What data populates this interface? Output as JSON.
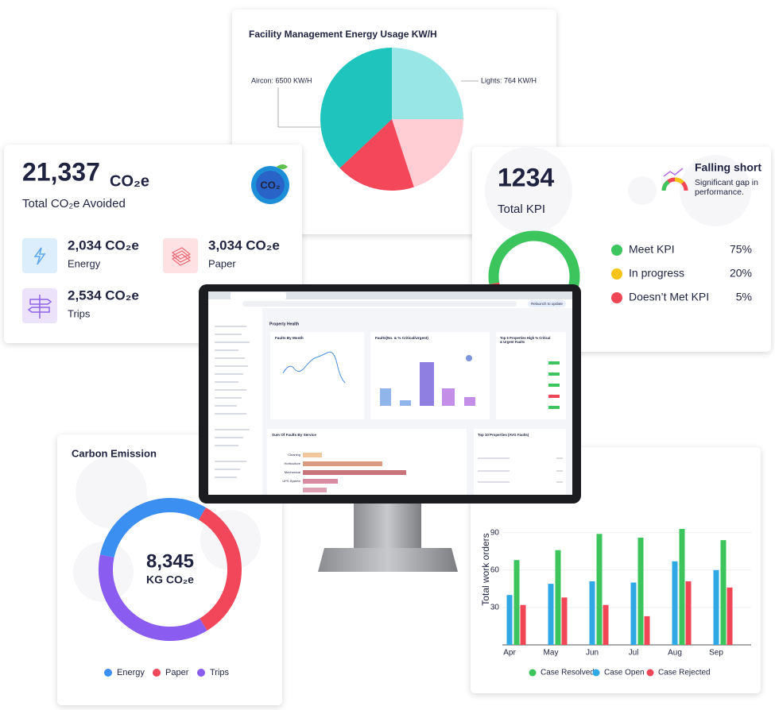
{
  "co2_card": {
    "value": "21,337",
    "unit": "CO₂e",
    "label": "Total CO₂e Avoided",
    "items": [
      {
        "value": "2,034 CO₂e",
        "label": "Energy"
      },
      {
        "value": "3,034 CO₂e",
        "label": "Paper"
      },
      {
        "value": "2,534 CO₂e",
        "label": "Trips"
      }
    ]
  },
  "kpi_card": {
    "value": "1234",
    "label": "Total KPI",
    "status": "Falling short",
    "status_note": [
      "Significant gap in",
      "performance."
    ]
  },
  "carbon_card": {
    "title": "Carbon Emission",
    "value": "8,345",
    "unit": "KG CO₂e"
  },
  "monitor": {
    "page_title": "Property Health",
    "button": "Relaunch to update",
    "panels": [
      "Faults By Month",
      "Faults(No. & % Critical/Urgent)",
      "Sum Of Faults By Service",
      "Top 10 Properties (AVG Faults)"
    ],
    "top5_title": [
      "Top 5 Properties High % Critical",
      "& Urgent Faults"
    ],
    "services": [
      "Cleaning",
      "Horticulture",
      "Mechanical",
      "UPS System"
    ]
  },
  "chart_data": [
    {
      "type": "pie",
      "title": "Facility Management Energy Usage KW/H",
      "categories": [
        null,
        null,
        null,
        null
      ],
      "values": [
        25,
        20,
        18,
        37
      ],
      "colors": [
        "#98e7e6",
        "#ffcdd3",
        "#f4475a",
        "#1fc4bd"
      ],
      "annotations": [
        "Aircon: 6500 KW/H",
        "Lights: 764 KW/H"
      ]
    },
    {
      "type": "donut",
      "categories": [
        "Meet KPI",
        "In progress",
        "Doesn’t Met KPI"
      ],
      "values": [
        75,
        20,
        5
      ],
      "value_labels": [
        "75%",
        "20%",
        "5%"
      ],
      "colors": [
        "#3cc55c",
        "#f7c416",
        "#f04656"
      ]
    },
    {
      "type": "donut",
      "categories": [
        "Energy",
        "Paper",
        "Trips"
      ],
      "values": [
        30,
        33,
        37
      ],
      "colors": [
        "#3b8ff0",
        "#f2475a",
        "#8a5cf0"
      ]
    },
    {
      "type": "bar",
      "categories": [
        "Apr",
        "May",
        "Jun",
        "Jul",
        "Aug",
        "Sep"
      ],
      "y_label": "Total work orders",
      "ylim": [
        0,
        100
      ],
      "yticks": [
        30,
        60,
        90
      ],
      "grid": true,
      "series": [
        {
          "name": "Case Resolved",
          "color": "#3cc55c",
          "values": [
            68,
            76,
            89,
            86,
            93,
            84
          ]
        },
        {
          "name": "Case Open",
          "color": "#2fa8e6",
          "values": [
            40,
            49,
            51,
            50,
            67,
            60
          ]
        },
        {
          "name": "Case Rejected",
          "color": "#f04656",
          "values": [
            32,
            38,
            32,
            23,
            51,
            46
          ]
        }
      ]
    }
  ]
}
